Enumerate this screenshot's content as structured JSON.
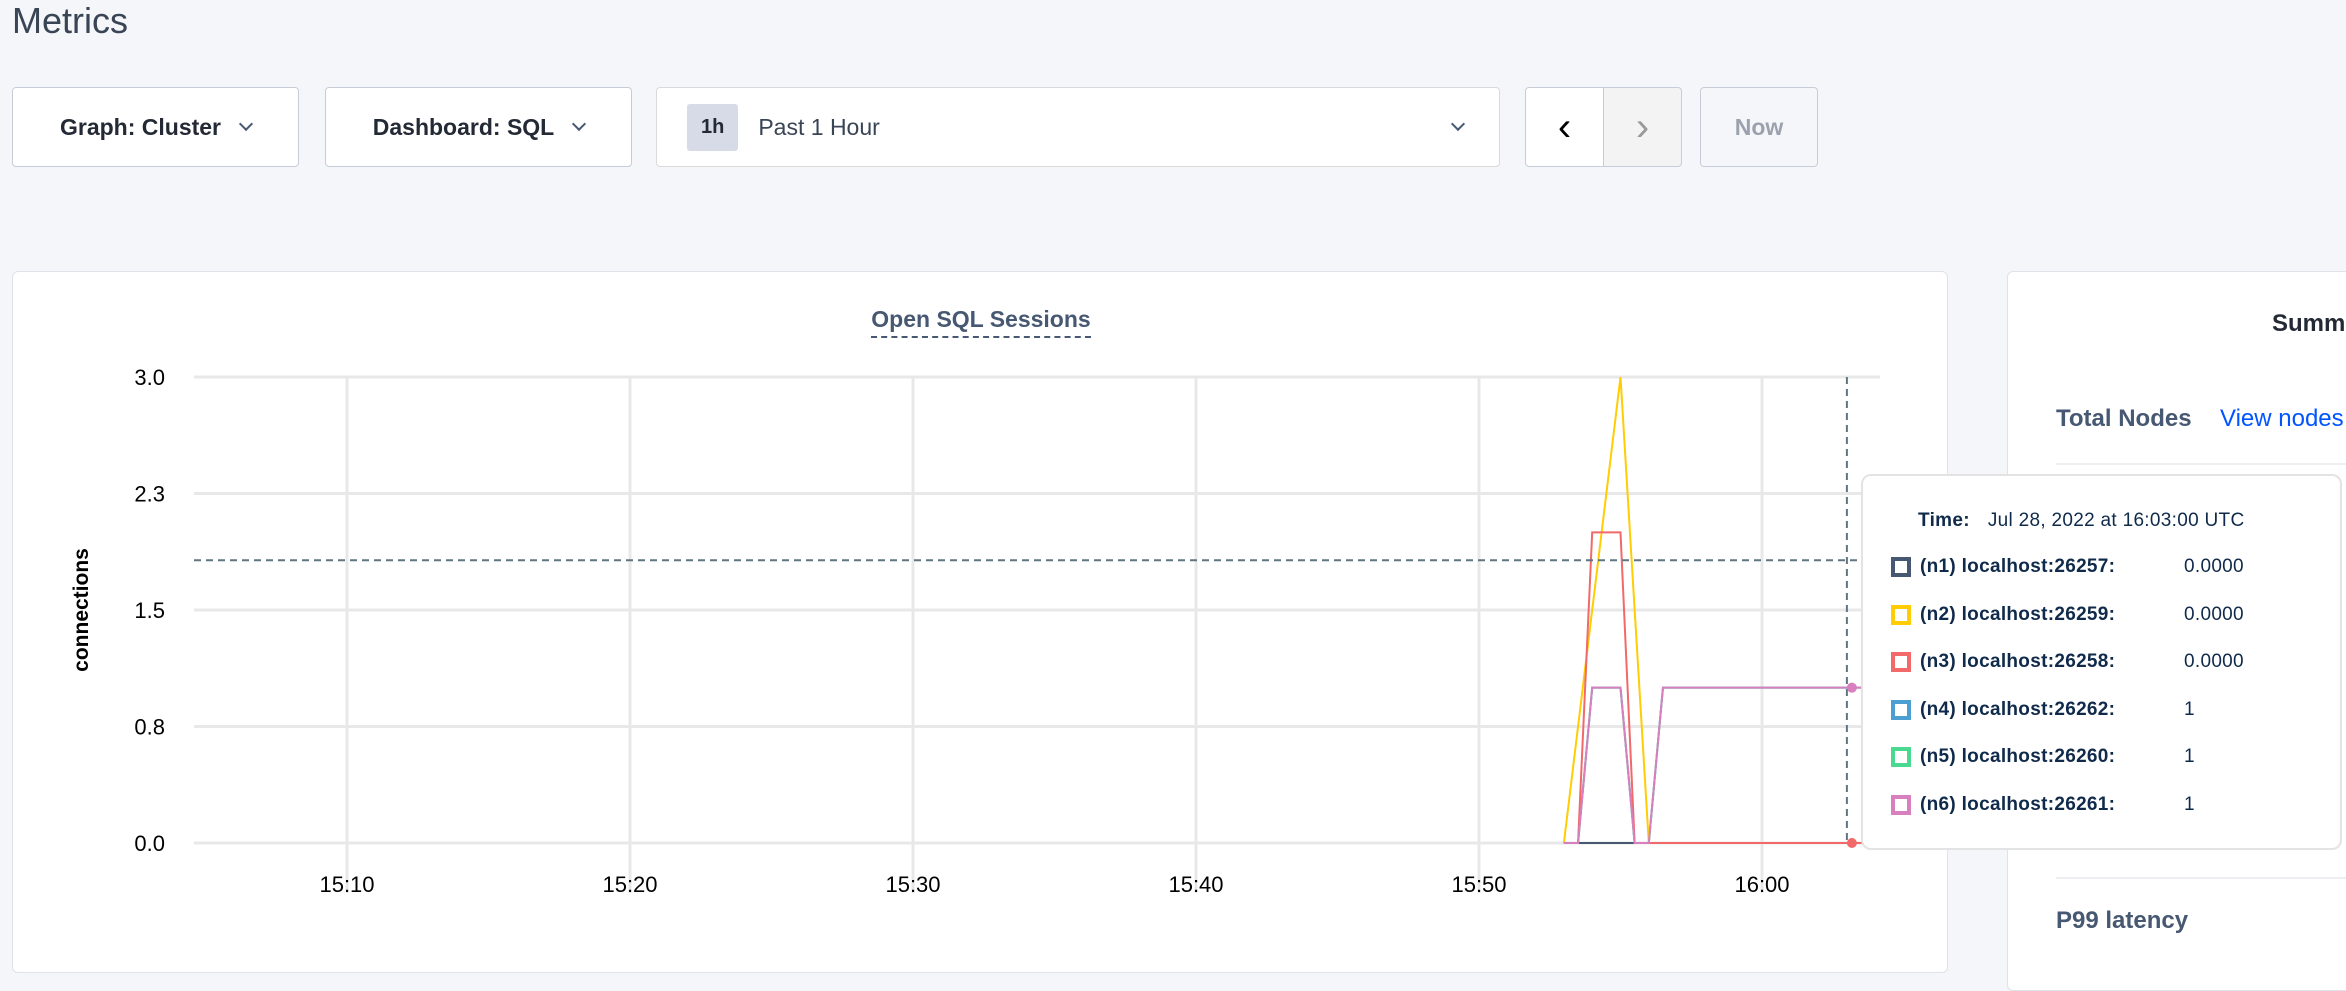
{
  "page": {
    "title": "Metrics"
  },
  "controls": {
    "graph_select": "Graph: Cluster",
    "dashboard_select": "Dashboard: SQL",
    "time_badge": "1h",
    "time_range": "Past 1 Hour",
    "prev_icon": "chevron-left-icon",
    "next_icon": "chevron-right-icon",
    "now_label": "Now"
  },
  "summary": {
    "title_partial": "Summ",
    "total_nodes_label": "Total Nodes",
    "view_nodes_link": "View nodes",
    "p99_label": "P99 latency"
  },
  "tooltip": {
    "time_label": "Time:",
    "time_value": "Jul 28, 2022 at 16:03:00 UTC",
    "rows": [
      {
        "label": "(n1) localhost:26257:",
        "value": "0.0000",
        "color": "#475872"
      },
      {
        "label": "(n2) localhost:26259:",
        "value": "0.0000",
        "color": "#ffcd02"
      },
      {
        "label": "(n3) localhost:26258:",
        "value": "0.0000",
        "color": "#f16969"
      },
      {
        "label": "(n4) localhost:26262:",
        "value": "1",
        "color": "#4e9fd1"
      },
      {
        "label": "(n5) localhost:26260:",
        "value": "1",
        "color": "#49d990"
      },
      {
        "label": "(n6) localhost:26261:",
        "value": "1",
        "color": "#d77fbf"
      }
    ]
  },
  "chart_data": {
    "type": "line",
    "title": "Open SQL Sessions",
    "ylabel": "connections",
    "xlabel": "",
    "ylim": [
      0,
      3
    ],
    "xlim": [
      "15:04:30",
      "16:04:00"
    ],
    "yticks": [
      {
        "value": 0,
        "label": "0.0"
      },
      {
        "value": 0.75,
        "label": "0.8"
      },
      {
        "value": 1.5,
        "label": "1.5"
      },
      {
        "value": 2.25,
        "label": "2.3"
      },
      {
        "value": 3,
        "label": "3.0"
      }
    ],
    "xticks": [
      "15:10",
      "15:20",
      "15:30",
      "15:40",
      "15:50",
      "16:00"
    ],
    "grid": true,
    "hover": {
      "time": "16:03:00",
      "value": 1.82
    },
    "series": [
      {
        "name": "(n1) localhost:26257",
        "color": "#475872",
        "points": [
          [
            "15:53:00",
            0
          ],
          [
            "16:04:00",
            0
          ]
        ]
      },
      {
        "name": "(n4) localhost:26262",
        "color": "#4e9fd1",
        "points": [
          [
            "15:53:00",
            0
          ],
          [
            "15:53:30",
            0
          ],
          [
            "15:54:00",
            1
          ],
          [
            "15:55:00",
            1
          ],
          [
            "15:55:30",
            0
          ],
          [
            "15:56:00",
            0
          ],
          [
            "15:56:30",
            1
          ],
          [
            "16:04:00",
            1
          ]
        ]
      },
      {
        "name": "(n5) localhost:26260",
        "color": "#49d990",
        "points": [
          [
            "15:53:00",
            0
          ],
          [
            "15:53:30",
            0
          ],
          [
            "15:54:00",
            1
          ],
          [
            "15:55:00",
            1
          ],
          [
            "15:55:30",
            0
          ],
          [
            "15:56:00",
            0
          ],
          [
            "15:56:30",
            1
          ],
          [
            "16:04:00",
            1
          ]
        ]
      },
      {
        "name": "(n2) localhost:26259",
        "color": "#ffcd02",
        "points": [
          [
            "15:53:00",
            0
          ],
          [
            "15:55:00",
            3
          ],
          [
            "15:56:00",
            0
          ],
          [
            "16:04:00",
            0
          ]
        ]
      },
      {
        "name": "(n3) localhost:26258",
        "color": "#f16969",
        "points": [
          [
            "15:53:00",
            0
          ],
          [
            "15:53:30",
            0
          ],
          [
            "15:54:00",
            2
          ],
          [
            "15:55:00",
            2
          ],
          [
            "15:55:30",
            0
          ],
          [
            "16:04:00",
            0
          ]
        ]
      },
      {
        "name": "(n6) localhost:26261",
        "color": "#d77fbf",
        "points": [
          [
            "15:53:00",
            0
          ],
          [
            "15:53:30",
            0
          ],
          [
            "15:54:00",
            1
          ],
          [
            "15:55:00",
            1
          ],
          [
            "15:55:30",
            0
          ],
          [
            "15:56:00",
            0
          ],
          [
            "15:56:30",
            1
          ],
          [
            "16:04:00",
            1
          ]
        ]
      }
    ]
  }
}
